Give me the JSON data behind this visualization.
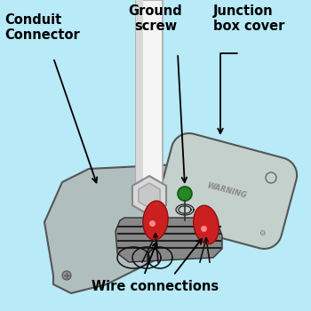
{
  "bg_color": "#b8eaf8",
  "plate_color": "#b0bebe",
  "plate_edge": "#555555",
  "cover_color": "#c0cece",
  "cover_edge": "#555555",
  "conduit_color": "#f2f2f2",
  "conduit_edge": "#aaaaaa",
  "hex_color": "#d0d0d0",
  "hex_edge": "#888888",
  "wire_red": "#cc2020",
  "wire_red_edge": "#881010",
  "screw_green": "#228822",
  "tank_arc_color": "#3388bb",
  "text_color": "#000000",
  "label_fontsize": 10.5,
  "label_fontweight": "bold",
  "labels": {
    "conduit_connector": "Conduit\nConnector",
    "ground_screw": "Ground\nscrew",
    "junction_box_cover": "Junction\nbox cover",
    "wire_connections": "Wire connections"
  }
}
